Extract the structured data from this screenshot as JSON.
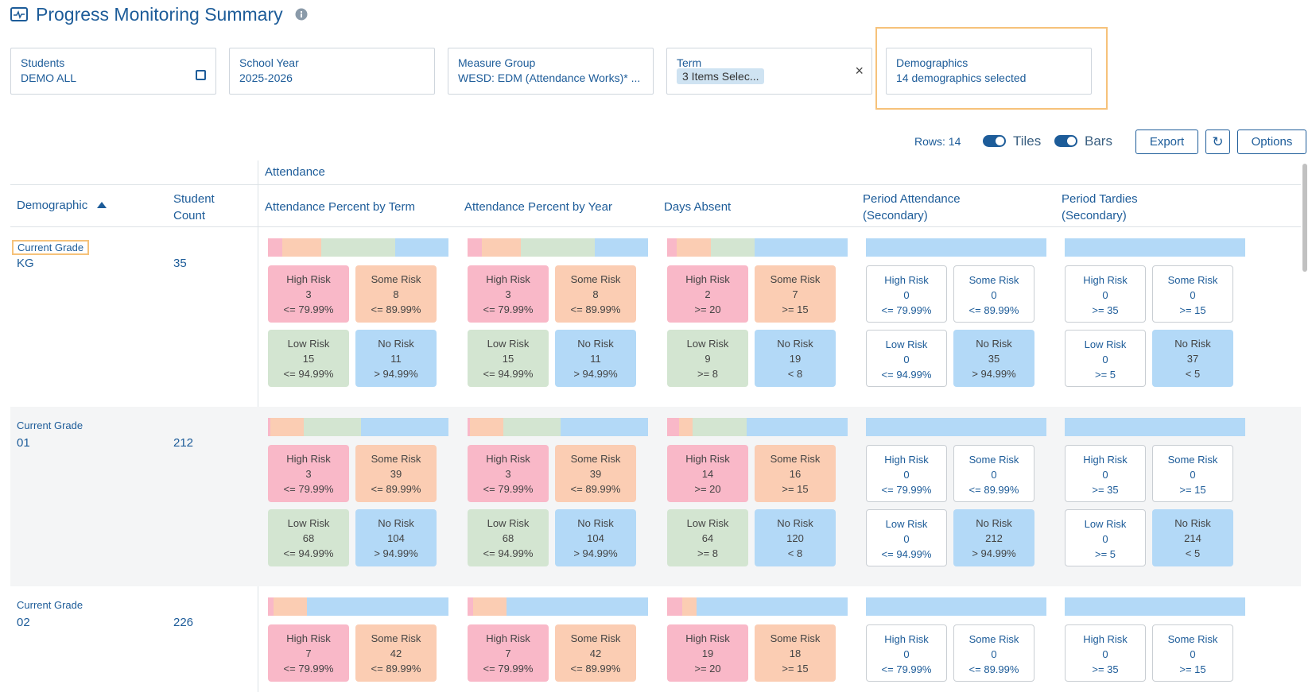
{
  "header": {
    "title": "Progress Monitoring Summary"
  },
  "filters": [
    {
      "label": "Students",
      "value": "DEMO ALL"
    },
    {
      "label": "School Year",
      "value": "2025-2026"
    },
    {
      "label": "Measure Group",
      "value": "WESD: EDM (Attendance Works)* ..."
    },
    {
      "label": "Term",
      "value": "3 Items Selec..."
    },
    {
      "label": "Demographics",
      "value": "14 demographics selected"
    }
  ],
  "toolbar": {
    "rows": "Rows: 14",
    "toggles": [
      "Tiles",
      "Bars"
    ],
    "buttons": [
      "Export",
      "Options"
    ]
  },
  "table": {
    "group": "Attendance",
    "columns": [
      "Demographic",
      "Student Count"
    ],
    "levels": [
      "High Risk",
      "Some Risk",
      "Low Risk",
      "No Risk"
    ],
    "colors": [
      "#f9b8c8",
      "#fbcdb3",
      "#d3e5d1",
      "#b3d9f7"
    ],
    "measures": [
      {
        "name": "Attendance Percent by Term",
        "thresholds": [
          "<= 79.99%",
          "<= 89.99%",
          "<= 94.99%",
          "> 94.99%"
        ]
      },
      {
        "name": "Attendance Percent by Year",
        "thresholds": [
          "<= 79.99%",
          "<= 89.99%",
          "<= 94.99%",
          "> 94.99%"
        ]
      },
      {
        "name": "Days Absent",
        "thresholds": [
          ">= 20",
          ">= 15",
          ">= 8",
          "< 8"
        ]
      },
      {
        "name": "Period Attendance (Secondary)",
        "thresholds": [
          "<= 79.99%",
          "<= 89.99%",
          "<= 94.99%",
          "> 94.99%"
        ]
      },
      {
        "name": "Period Tardies (Secondary)",
        "thresholds": [
          ">= 35",
          ">= 15",
          ">= 5",
          "< 5"
        ]
      }
    ],
    "rows": [
      {
        "group": "Current Grade",
        "value": "KG",
        "count": 35,
        "cells": [
          [
            3,
            8,
            15,
            11
          ],
          [
            3,
            8,
            15,
            11
          ],
          [
            2,
            7,
            9,
            19
          ],
          [
            0,
            0,
            0,
            35
          ],
          [
            0,
            0,
            0,
            37
          ]
        ]
      },
      {
        "group": "Current Grade",
        "value": "01",
        "count": 212,
        "cells": [
          [
            3,
            39,
            68,
            104
          ],
          [
            3,
            39,
            68,
            104
          ],
          [
            14,
            16,
            64,
            120
          ],
          [
            0,
            0,
            0,
            212
          ],
          [
            0,
            0,
            0,
            214
          ]
        ]
      },
      {
        "group": "Current Grade",
        "value": "02",
        "count": 226,
        "cells": [
          [
            7,
            42
          ],
          [
            7,
            42
          ],
          [
            19,
            18
          ],
          [
            0,
            0
          ],
          [
            0,
            0
          ]
        ]
      }
    ]
  }
}
